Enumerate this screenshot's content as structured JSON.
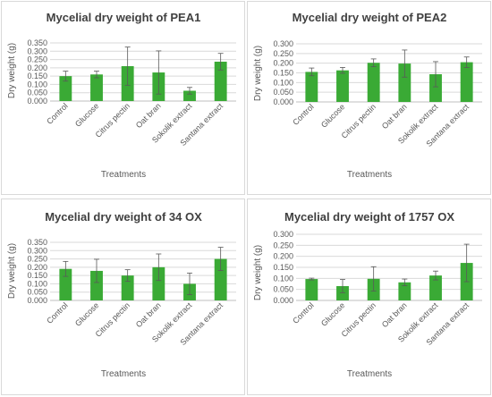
{
  "chart_data": [
    {
      "type": "bar",
      "title": "Mycelial dry weight of PEA1",
      "xlabel": "Treatments",
      "ylabel": "Dry weight (g)",
      "categories": [
        "Control",
        "Glucose",
        "Citrus pectin",
        "Oat bran",
        "Sokolik extract",
        "Santana extract"
      ],
      "values": [
        0.15,
        0.16,
        0.21,
        0.172,
        0.062,
        0.237
      ],
      "errors": [
        0.03,
        0.02,
        0.115,
        0.13,
        0.02,
        0.05
      ],
      "ylim": [
        0,
        0.35
      ],
      "yticks": [
        "0.000",
        "0.050",
        "0.100",
        "0.150",
        "0.200",
        "0.250",
        "0.300",
        "0.350"
      ],
      "grid": true,
      "color": "#3aaa35"
    },
    {
      "type": "bar",
      "title": "Mycelial dry weight of PEA2",
      "xlabel": "Treatments",
      "ylabel": "Dry weight (g)",
      "categories": [
        "Control",
        "Glucose",
        "Citrus pectin",
        "Oat bran",
        "Sokolik extract",
        "Santana extract"
      ],
      "values": [
        0.155,
        0.163,
        0.202,
        0.198,
        0.143,
        0.205
      ],
      "errors": [
        0.02,
        0.015,
        0.02,
        0.07,
        0.065,
        0.027
      ],
      "ylim": [
        0,
        0.3
      ],
      "yticks": [
        "0.000",
        "0.050",
        "0.100",
        "0.150",
        "0.200",
        "0.250",
        "0.300"
      ],
      "grid": true,
      "color": "#3aaa35"
    },
    {
      "type": "bar",
      "title": "Mycelial dry weight of 34 OX",
      "xlabel": "Treatments",
      "ylabel": "Dry weight (g)",
      "categories": [
        "Control",
        "Glucose",
        "Citrus pectin",
        "Oat bran",
        "Sokolik extract",
        "Santana extract"
      ],
      "values": [
        0.19,
        0.178,
        0.15,
        0.2,
        0.1,
        0.25
      ],
      "errors": [
        0.045,
        0.07,
        0.035,
        0.08,
        0.065,
        0.07
      ],
      "ylim": [
        0,
        0.35
      ],
      "yticks": [
        "0.000",
        "0.050",
        "0.100",
        "0.150",
        "0.200",
        "0.250",
        "0.300",
        "0.350"
      ],
      "grid": true,
      "color": "#3aaa35"
    },
    {
      "type": "bar",
      "title": "Mycelial dry weight of 1757 OX",
      "xlabel": "Treatments",
      "ylabel": "Dry weight (g)",
      "categories": [
        "Control",
        "Glucose",
        "Citrus pectin",
        "Oat bran",
        "Sokolik extract",
        "Santana extract"
      ],
      "values": [
        0.097,
        0.065,
        0.098,
        0.082,
        0.113,
        0.17
      ],
      "errors": [
        0.004,
        0.03,
        0.055,
        0.015,
        0.02,
        0.085
      ],
      "ylim": [
        0,
        0.3
      ],
      "yticks": [
        "0.000",
        "0.050",
        "0.100",
        "0.150",
        "0.200",
        "0.250",
        "0.300"
      ],
      "grid": true,
      "color": "#3aaa35"
    }
  ]
}
